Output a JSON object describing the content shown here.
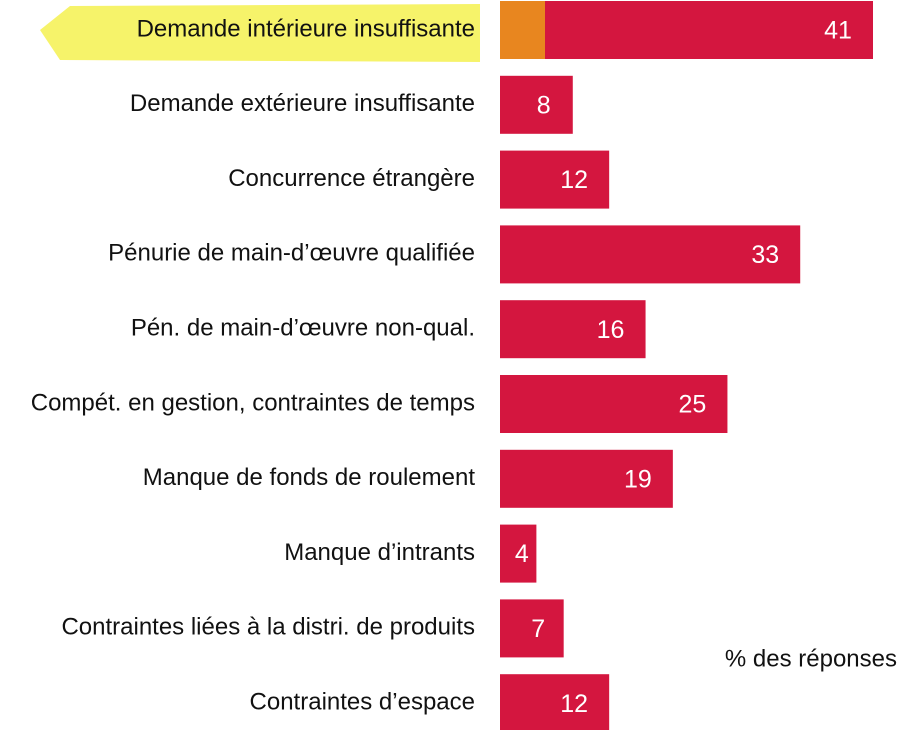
{
  "chart_data": {
    "type": "bar",
    "orientation": "horizontal",
    "categories": [
      "Demande intérieure insuffisante",
      "Demande extérieure insuffisante",
      "Concurrence étrangère",
      "Pénurie de main-d’œuvre qualifiée",
      "Pén. de main-d’œuvre non-qual.",
      "Compét. en gestion, contraintes de temps",
      "Manque de fonds de roulement",
      "Manque d’intrants",
      "Contraintes liées à la distri. de produits",
      "Contraintes d’espace"
    ],
    "values": [
      41,
      8,
      12,
      33,
      16,
      25,
      19,
      4,
      7,
      12
    ],
    "color": "#d4163f",
    "annotation": "% des réponses"
  }
}
